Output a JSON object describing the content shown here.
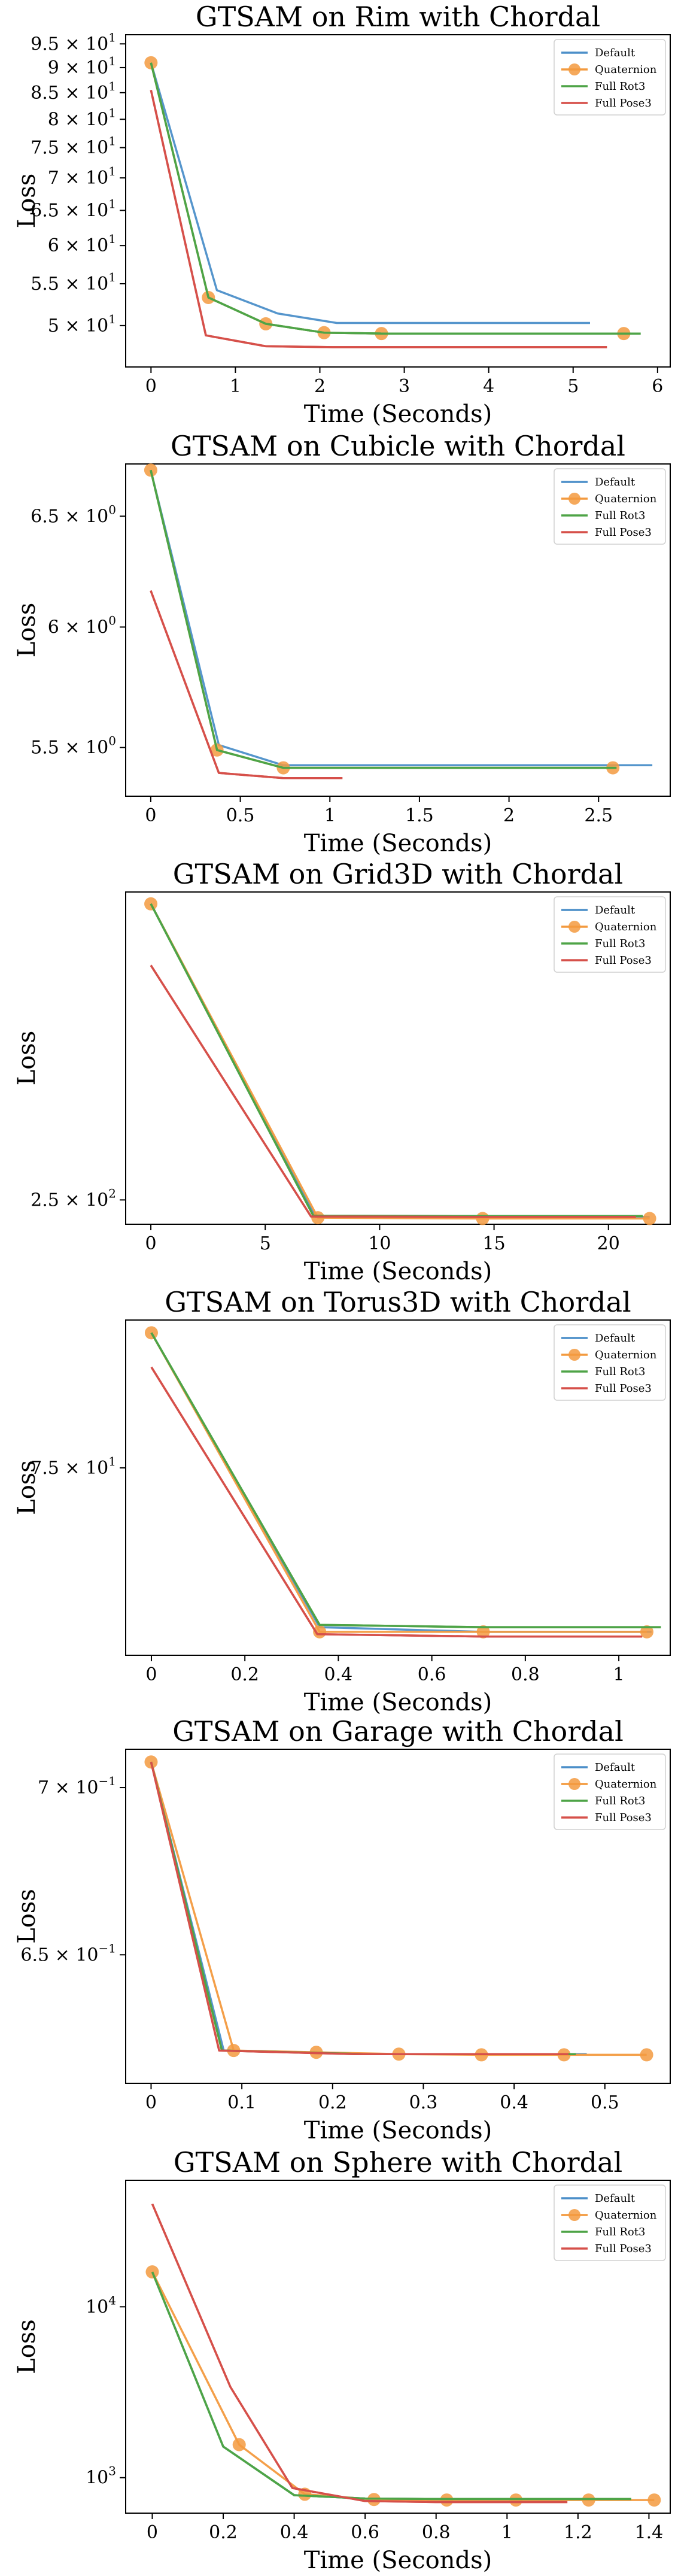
{
  "colors": {
    "Default": "#4c8fc9",
    "Quaternion": "#f39a3f",
    "Full Rot3": "#4ea447",
    "Full Pose3": "#d6504a",
    "axis": "#000000"
  },
  "legend_labels": [
    "Default",
    "Quaternion",
    "Full Rot3",
    "Full Pose3"
  ],
  "legend_placement": "top-right",
  "chart_data": [
    {
      "type": "line",
      "title": "GTSAM on Rim with Chordal",
      "xlabel": "Time (Seconds)",
      "ylabel": "Loss",
      "yscale": "log",
      "xlim": [
        -0.3,
        6.15
      ],
      "ylim": [
        45.5,
        97
      ],
      "xticks": [
        0,
        1,
        2,
        3,
        4,
        5,
        6
      ],
      "yticks": [
        {
          "value": 95,
          "base": "9.5 × 10",
          "exp": "1"
        },
        {
          "value": 90,
          "base": "9 × 10",
          "exp": "1"
        },
        {
          "value": 85,
          "base": "8.5 × 10",
          "exp": "1"
        },
        {
          "value": 80,
          "base": "8 × 10",
          "exp": "1"
        },
        {
          "value": 75,
          "base": "7.5 × 10",
          "exp": "1"
        },
        {
          "value": 70,
          "base": "7 × 10",
          "exp": "1"
        },
        {
          "value": 65,
          "base": "6.5 × 10",
          "exp": "1"
        },
        {
          "value": 60,
          "base": "6 × 10",
          "exp": "1"
        },
        {
          "value": 55,
          "base": "5.5 × 10",
          "exp": "1"
        },
        {
          "value": 50,
          "base": "5 × 10",
          "exp": "1"
        }
      ],
      "series": [
        {
          "name": "Default",
          "x": [
            0,
            0.78,
            1.5,
            2.2,
            2.9,
            5.2
          ],
          "y": [
            91,
            54.2,
            51.4,
            50.3,
            50.3,
            50.3
          ]
        },
        {
          "name": "Quaternion",
          "x": [
            0,
            0.68,
            1.36,
            2.05,
            2.73,
            5.6
          ],
          "y": [
            91,
            53.3,
            50.2,
            49.2,
            49.1,
            49.1
          ],
          "markers": true
        },
        {
          "name": "Full Rot3",
          "x": [
            0,
            0.68,
            1.36,
            2.05,
            2.73,
            5.8
          ],
          "y": [
            91,
            53.3,
            50.2,
            49.2,
            49.1,
            49.1
          ]
        },
        {
          "name": "Full Pose3",
          "x": [
            0,
            0.65,
            1.36,
            2.15,
            5.4
          ],
          "y": [
            85.5,
            48.9,
            47.7,
            47.6,
            47.6
          ]
        }
      ]
    },
    {
      "type": "line",
      "title": "GTSAM on Cubicle with Chordal",
      "xlabel": "Time (Seconds)",
      "ylabel": "Loss",
      "yscale": "log",
      "xlim": [
        -0.14,
        2.9
      ],
      "ylim": [
        5.31,
        6.75
      ],
      "xticks": [
        0,
        0.5,
        1,
        1.5,
        2,
        2.5
      ],
      "yticks": [
        {
          "value": 6.5,
          "base": "6.5 × 10",
          "exp": "0"
        },
        {
          "value": 6,
          "base": "6 × 10",
          "exp": "0"
        },
        {
          "value": 5.5,
          "base": "5.5 × 10",
          "exp": "0"
        }
      ],
      "series": [
        {
          "name": "Default",
          "x": [
            0,
            0.38,
            0.74,
            1.1,
            2.8
          ],
          "y": [
            6.72,
            5.51,
            5.43,
            5.43,
            5.43
          ]
        },
        {
          "name": "Quaternion",
          "x": [
            0,
            0.37,
            0.74,
            2.58
          ],
          "y": [
            6.72,
            5.49,
            5.42,
            5.42
          ],
          "markers": true
        },
        {
          "name": "Full Rot3",
          "x": [
            0,
            0.37,
            0.74,
            2.6
          ],
          "y": [
            6.72,
            5.49,
            5.42,
            5.42
          ]
        },
        {
          "name": "Full Pose3",
          "x": [
            0,
            0.38,
            0.74,
            1.07
          ],
          "y": [
            6.16,
            5.4,
            5.38,
            5.38
          ]
        }
      ]
    },
    {
      "type": "line",
      "title": "GTSAM on Grid3D with Chordal",
      "xlabel": "Time (Seconds)",
      "ylabel": "Loss",
      "yscale": "log",
      "xlim": [
        -1.1,
        22.7
      ],
      "ylim": [
        244,
        340
      ],
      "xticks": [
        0,
        5,
        10,
        15,
        20
      ],
      "yticks": [
        {
          "value": 250,
          "base": "2.5 × 10",
          "exp": "2"
        }
      ],
      "series": [
        {
          "name": "Default",
          "x": [
            0,
            7.2,
            14.4,
            21.8
          ],
          "y": [
            336,
            245.8,
            245.8,
            245.8
          ]
        },
        {
          "name": "Quaternion",
          "x": [
            0,
            7.3,
            14.5,
            21.8
          ],
          "y": [
            336,
            245.6,
            245.4,
            245.4
          ],
          "markers": true
        },
        {
          "name": "Full Rot3",
          "x": [
            0,
            7.1,
            14.2,
            21.5
          ],
          "y": [
            336,
            246.1,
            246.0,
            246.0
          ]
        },
        {
          "name": "Full Pose3",
          "x": [
            0,
            7.0,
            14.0,
            21.2
          ],
          "y": [
            316,
            245.9,
            245.8,
            245.8
          ]
        }
      ]
    },
    {
      "type": "line",
      "title": "GTSAM on Torus3D with Chordal",
      "xlabel": "Time (Seconds)",
      "ylabel": "Loss",
      "yscale": "log",
      "xlim": [
        -0.055,
        1.11
      ],
      "ylim": [
        70.9,
        78.4
      ],
      "xticks": [
        0,
        0.2,
        0.4,
        0.6,
        0.8,
        1
      ],
      "yticks": [
        {
          "value": 75,
          "base": "7.5 × 10",
          "exp": "1"
        }
      ],
      "series": [
        {
          "name": "Default",
          "x": [
            0,
            0.36,
            0.71,
            1.07
          ],
          "y": [
            78.1,
            71.5,
            71.4,
            71.4
          ]
        },
        {
          "name": "Quaternion",
          "x": [
            0,
            0.36,
            0.71,
            1.06
          ],
          "y": [
            78.1,
            71.4,
            71.4,
            71.4
          ],
          "markers": true
        },
        {
          "name": "Full Rot3",
          "x": [
            0,
            0.36,
            0.71,
            1.09
          ],
          "y": [
            78.1,
            71.55,
            71.5,
            71.5
          ]
        },
        {
          "name": "Full Pose3",
          "x": [
            0,
            0.355,
            0.71,
            1.05
          ],
          "y": [
            77.3,
            71.35,
            71.3,
            71.3
          ]
        }
      ]
    },
    {
      "type": "line",
      "title": "GTSAM on Garage with Chordal",
      "xlabel": "Time (Seconds)",
      "ylabel": "Loss",
      "yscale": "log",
      "xlim": [
        -0.028,
        0.572
      ],
      "ylim": [
        0.614,
        0.712
      ],
      "xticks": [
        0,
        0.1,
        0.2,
        0.3,
        0.4,
        0.5
      ],
      "yticks": [
        {
          "value": 0.7,
          "base": "7 × 10",
          "exp": "−1"
        },
        {
          "value": 0.65,
          "base": "6.5 × 10",
          "exp": "−1"
        }
      ],
      "series": [
        {
          "name": "Default",
          "x": [
            0,
            0.08,
            0.16,
            0.24,
            0.32,
            0.4,
            0.48
          ],
          "y": [
            0.708,
            0.623,
            0.6225,
            0.622,
            0.622,
            0.622,
            0.622
          ]
        },
        {
          "name": "Quaternion",
          "x": [
            0,
            0.091,
            0.182,
            0.273,
            0.364,
            0.455,
            0.546
          ],
          "y": [
            0.708,
            0.623,
            0.6225,
            0.622,
            0.6218,
            0.6218,
            0.6218
          ],
          "markers": true
        },
        {
          "name": "Full Rot3",
          "x": [
            0,
            0.078,
            0.156,
            0.234,
            0.312,
            0.39,
            0.468
          ],
          "y": [
            0.708,
            0.623,
            0.6225,
            0.622,
            0.622,
            0.622,
            0.622
          ]
        },
        {
          "name": "Full Pose3",
          "x": [
            0,
            0.075,
            0.15,
            0.225,
            0.3,
            0.375,
            0.46
          ],
          "y": [
            0.708,
            0.623,
            0.6225,
            0.622,
            0.622,
            0.622,
            0.622
          ]
        }
      ]
    },
    {
      "type": "line",
      "title": "GTSAM on Sphere with Chordal",
      "xlabel": "Time (Seconds)",
      "ylabel": "Loss",
      "yscale": "log",
      "xlim": [
        -0.075,
        1.46
      ],
      "ylim": [
        620,
        55000
      ],
      "xticks": [
        0,
        0.2,
        0.4,
        0.6,
        0.8,
        1,
        1.2,
        1.4
      ],
      "yticks": [
        {
          "value": 10000,
          "base": "10",
          "exp": "4"
        },
        {
          "value": 1000,
          "base": "10",
          "exp": "3"
        }
      ],
      "series": [
        {
          "name": "Default",
          "x": [
            0,
            0.2,
            0.4,
            0.6,
            0.8,
            1.0,
            1.3
          ],
          "y": [
            16000,
            1520,
            790,
            755,
            750,
            750,
            750
          ]
        },
        {
          "name": "Quaternion",
          "x": [
            0,
            0.245,
            0.43,
            0.625,
            0.83,
            1.025,
            1.23,
            1.415
          ],
          "y": [
            16000,
            1560,
            800,
            745,
            740,
            740,
            740,
            740
          ],
          "markers": true
        },
        {
          "name": "Full Rot3",
          "x": [
            0,
            0.2,
            0.4,
            0.6,
            0.8,
            1.0,
            1.35
          ],
          "y": [
            16000,
            1520,
            790,
            755,
            750,
            750,
            750
          ]
        },
        {
          "name": "Full Pose3",
          "x": [
            0,
            0.22,
            0.395,
            0.6,
            0.8,
            1.0,
            1.17
          ],
          "y": [
            40000,
            3400,
            870,
            730,
            720,
            720,
            720
          ]
        }
      ]
    }
  ]
}
